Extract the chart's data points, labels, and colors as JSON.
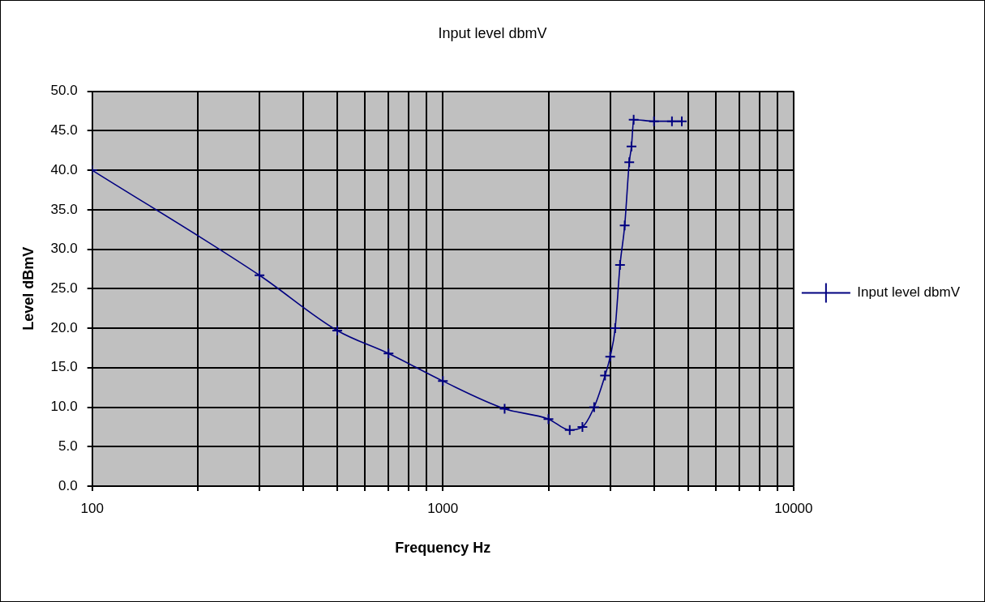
{
  "chart_data": {
    "type": "line",
    "title": "Input level dbmV",
    "xlabel": "Frequency Hz",
    "ylabel": "Level dBmV",
    "x": [
      100,
      300,
      500,
      700,
      1000,
      1500,
      2000,
      2300,
      2500,
      2700,
      2900,
      3000,
      3100,
      3200,
      3300,
      3400,
      3450,
      3500,
      4000,
      4500,
      4800
    ],
    "series": [
      {
        "name": "Input level dbmV",
        "color": "#000080",
        "values": [
          40,
          26.7,
          19.7,
          16.8,
          13.3,
          9.8,
          8.5,
          7.1,
          7.5,
          10,
          14,
          16.4,
          20,
          28,
          33,
          41,
          43,
          46.4,
          46.2,
          46.2,
          46.2
        ]
      }
    ],
    "log": "x",
    "xlim": [
      100,
      10000
    ],
    "xticks": [
      100,
      {
        "value": 200,
        "label": null
      },
      {
        "value": 300,
        "label": null
      },
      {
        "value": 400,
        "label": null
      },
      {
        "value": 500,
        "label": null
      },
      {
        "value": 600,
        "label": null
      },
      {
        "value": 700,
        "label": null
      },
      {
        "value": 800,
        "label": null
      },
      {
        "value": 900,
        "label": null
      },
      1000,
      {
        "value": 2000,
        "label": null
      },
      {
        "value": 3000,
        "label": null
      },
      {
        "value": 4000,
        "label": null
      },
      {
        "value": 5000,
        "label": null
      },
      {
        "value": 6000,
        "label": null
      },
      {
        "value": 7000,
        "label": null
      },
      {
        "value": 8000,
        "label": null
      },
      {
        "value": 9000,
        "label": null
      },
      10000
    ],
    "ylim": [
      0,
      50
    ],
    "yticks": [
      {
        "value": 0,
        "label": "0.0"
      },
      {
        "value": 5,
        "label": "5.0"
      },
      {
        "value": 10,
        "label": "10.0"
      },
      {
        "value": 15,
        "label": "15.0"
      },
      {
        "value": 20,
        "label": "20.0"
      },
      {
        "value": 25,
        "label": "25.0"
      },
      {
        "value": 30,
        "label": "30.0"
      },
      {
        "value": 35,
        "label": "35.0"
      },
      {
        "value": 40,
        "label": "40.0"
      },
      {
        "value": 45,
        "label": "45.0"
      },
      {
        "value": 50,
        "label": "50.0"
      }
    ],
    "grid": true,
    "legend": "right",
    "marker": "cross",
    "line_style": "solid"
  }
}
